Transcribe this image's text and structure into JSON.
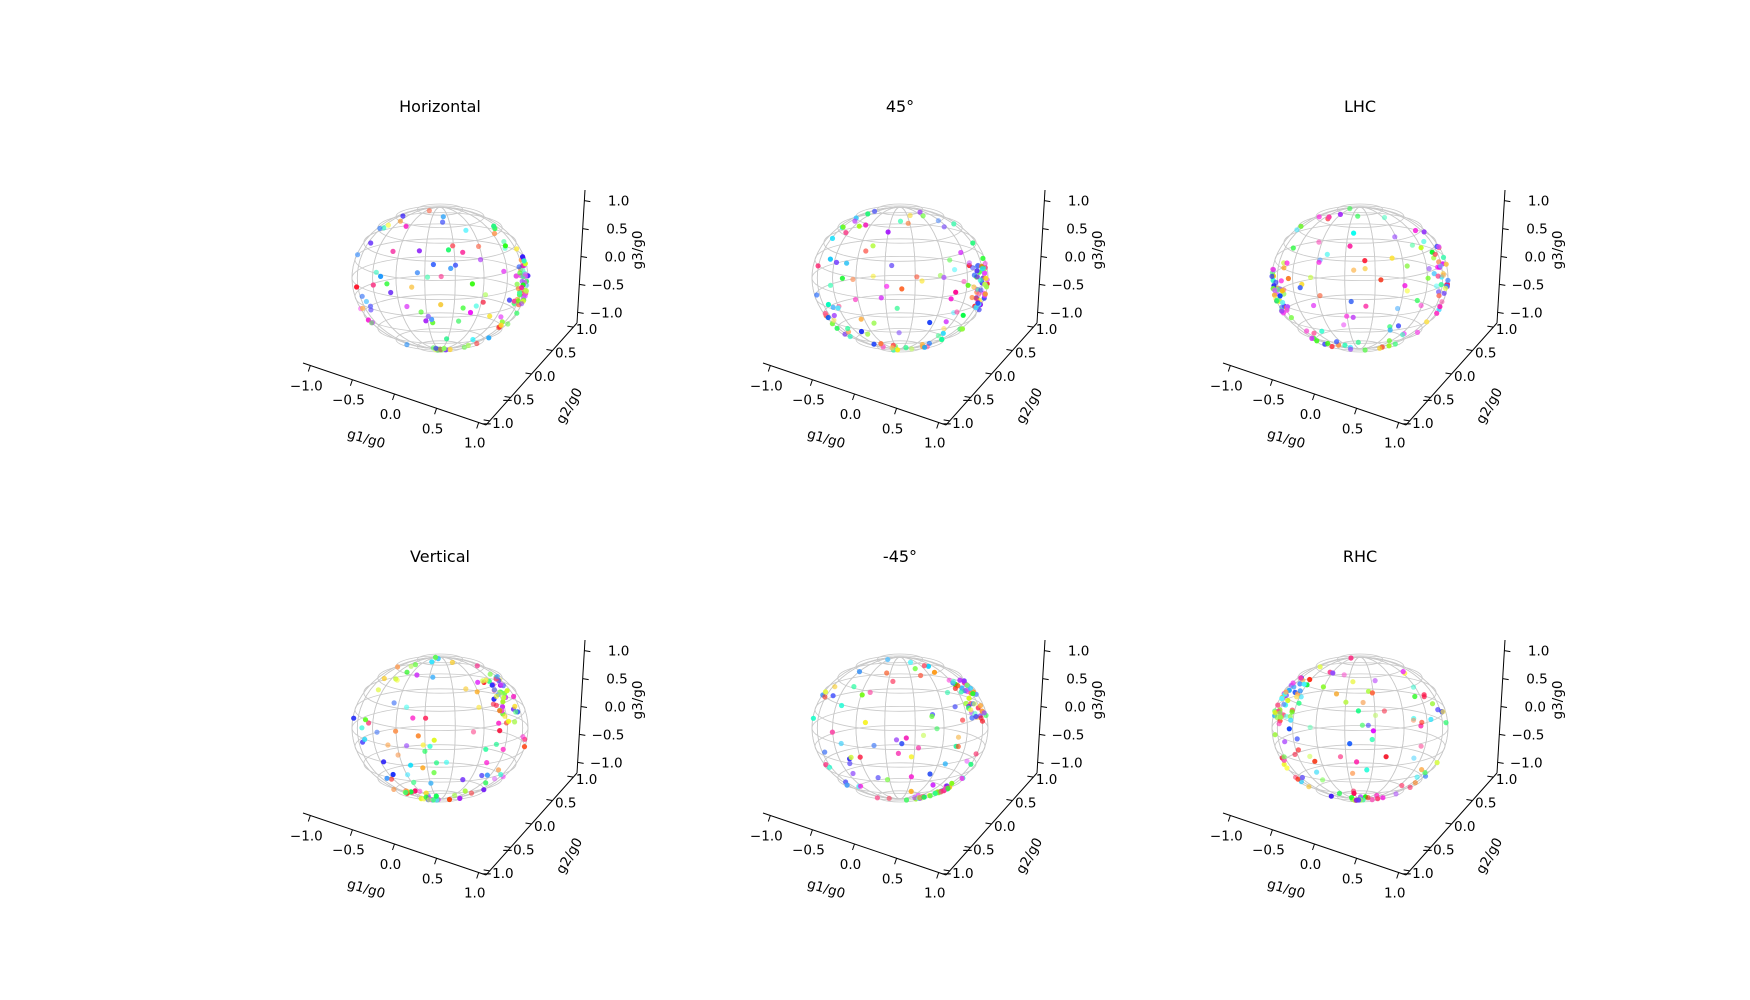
{
  "chart_data": [
    {
      "type": "scatter",
      "title": "Horizontal",
      "xlabel": "g1/g0",
      "ylabel": "g2/g0",
      "zlabel": "g3/g0",
      "xlim": [
        -1.0,
        1.0
      ],
      "ylim": [
        -1.0,
        1.0
      ],
      "zlim": [
        -1.0,
        1.0
      ],
      "grid": false,
      "legend": "none",
      "seed": 11,
      "hot": [
        {
          "lon": 75,
          "lat": 0,
          "w": 0.35
        },
        {
          "lon": 0,
          "lat": -85,
          "w": 0.1
        }
      ]
    },
    {
      "type": "scatter",
      "title": "45°",
      "xlabel": "g1/g0",
      "ylabel": "g2/g0",
      "zlabel": "g3/g0",
      "xlim": [
        -1.0,
        1.0
      ],
      "ylim": [
        -1.0,
        1.0
      ],
      "zlim": [
        -1.0,
        1.0
      ],
      "grid": false,
      "legend": "none",
      "seed": 23,
      "hot": [
        {
          "lon": 70,
          "lat": 0,
          "w": 0.3
        },
        {
          "lon": -60,
          "lat": -35,
          "w": 0.15
        }
      ]
    },
    {
      "type": "scatter",
      "title": "LHC",
      "xlabel": "g1/g0",
      "ylabel": "g2/g0",
      "zlabel": "g3/g0",
      "xlim": [
        -1.0,
        1.0
      ],
      "ylim": [
        -1.0,
        1.0
      ],
      "zlim": [
        -1.0,
        1.0
      ],
      "grid": false,
      "legend": "none",
      "seed": 37,
      "hot": [
        {
          "lon": -75,
          "lat": -10,
          "w": 0.25
        },
        {
          "lon": 75,
          "lat": 10,
          "w": 0.2
        }
      ]
    },
    {
      "type": "scatter",
      "title": "Vertical",
      "xlabel": "g1/g0",
      "ylabel": "g2/g0",
      "zlabel": "g3/g0",
      "xlim": [
        -1.0,
        1.0
      ],
      "ylim": [
        -1.0,
        1.0
      ],
      "zlim": [
        -1.0,
        1.0
      ],
      "grid": false,
      "legend": "none",
      "seed": 41,
      "hot": [
        {
          "lon": 60,
          "lat": 30,
          "w": 0.3
        },
        {
          "lon": -30,
          "lat": -70,
          "w": 0.15
        }
      ]
    },
    {
      "type": "scatter",
      "title": "-45°",
      "xlabel": "g1/g0",
      "ylabel": "g2/g0",
      "zlabel": "g3/g0",
      "xlim": [
        -1.0,
        1.0
      ],
      "ylim": [
        -1.0,
        1.0
      ],
      "zlim": [
        -1.0,
        1.0
      ],
      "grid": false,
      "legend": "none",
      "seed": 53,
      "hot": [
        {
          "lon": 70,
          "lat": 30,
          "w": 0.3
        },
        {
          "lon": 60,
          "lat": -60,
          "w": 0.2
        }
      ]
    },
    {
      "type": "scatter",
      "title": "RHC",
      "xlabel": "g1/g0",
      "ylabel": "g2/g0",
      "zlabel": "g3/g0",
      "xlim": [
        -1.0,
        1.0
      ],
      "ylim": [
        -1.0,
        1.0
      ],
      "zlim": [
        -1.0,
        1.0
      ],
      "grid": false,
      "legend": "none",
      "seed": 67,
      "hot": [
        {
          "lon": -70,
          "lat": 30,
          "w": 0.2
        },
        {
          "lon": 0,
          "lat": -80,
          "w": 0.15
        }
      ]
    }
  ]
}
